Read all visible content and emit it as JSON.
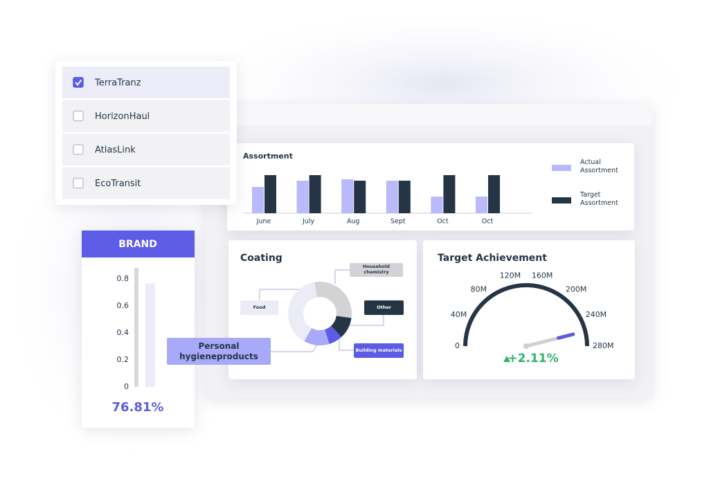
{
  "chart_data": [
    {
      "type": "bar",
      "title": "Assortment",
      "categories": [
        "June",
        "July",
        "Aug",
        "Sept",
        "Oct",
        "Oct"
      ],
      "series": [
        {
          "name": "Actual Assortment",
          "color": "#b9b9fb",
          "values": [
            38,
            47,
            49,
            47,
            24,
            24
          ]
        },
        {
          "name": "Target Assortment",
          "color": "#263545",
          "values": [
            55,
            55,
            47,
            47,
            55,
            55
          ]
        }
      ],
      "legend": "right"
    },
    {
      "type": "pie",
      "title": "Coating",
      "donut": true,
      "categories": [
        "Household chemistry",
        "Other",
        "Building materials",
        "Personal hygieneproducts",
        "Food"
      ],
      "values": [
        30,
        11,
        7,
        13,
        39
      ],
      "colors": [
        "#d3d3d6",
        "#263545",
        "#5c5ce6",
        "#a9a9f9",
        "#ececf6"
      ]
    },
    {
      "type": "gauge",
      "title": "Target Achievement",
      "xlim": [
        0,
        280000000
      ],
      "xticks": [
        0,
        {
          "value": 40000000,
          "label": "40M"
        },
        {
          "value": 80000000,
          "label": "80M"
        },
        {
          "value": 120000000,
          "label": "120M"
        },
        {
          "value": 160000000,
          "label": "160M"
        },
        {
          "value": 200000000,
          "label": "200M"
        },
        {
          "value": 240000000,
          "label": "240M"
        },
        {
          "value": 280000000,
          "label": "280M"
        }
      ],
      "value": 258000000,
      "delta_label": "+2.11%",
      "delta_color": "#2db36b",
      "color": "#263545"
    },
    {
      "type": "column",
      "title": "BRAND",
      "categories": [
        null
      ],
      "values": [
        0.7681
      ],
      "value_labels": [
        "76.81%"
      ],
      "ylim": [
        0,
        0.8
      ],
      "yticks": [
        0,
        0.2,
        0.4,
        0.6,
        0.8
      ],
      "color": "#ececfb",
      "accent": "#5c5ce6"
    }
  ],
  "filter": {
    "options": [
      {
        "label": "TerraTranz",
        "checked": true
      },
      {
        "label": "HorizonHaul",
        "checked": false
      },
      {
        "label": "AtlasLink",
        "checked": false
      },
      {
        "label": "EcoTransit",
        "checked": false
      }
    ]
  }
}
